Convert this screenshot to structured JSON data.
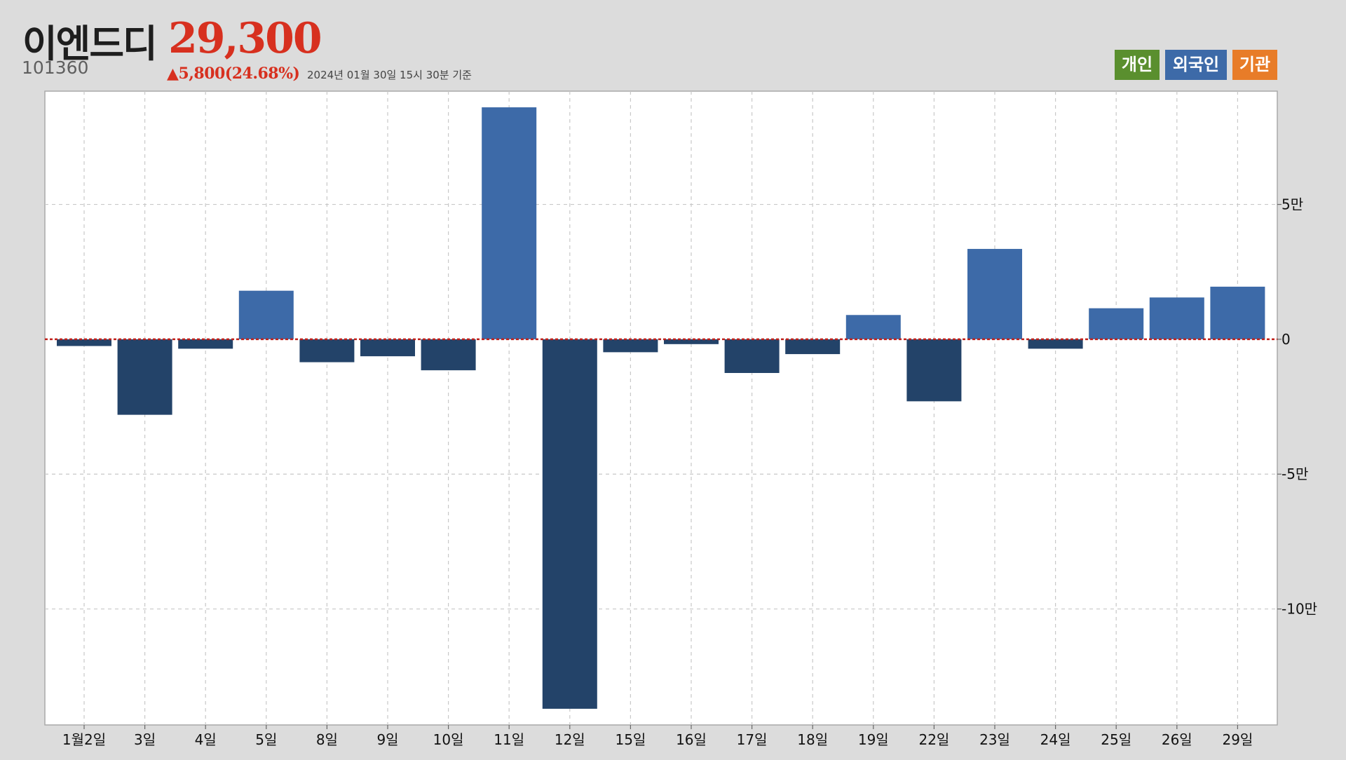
{
  "header": {
    "name": "이엔드디",
    "price": "29,300",
    "code": "101360",
    "change": "▲5,800(24.68%)",
    "asof": "2024년 01월 30일 15시 30분 기준"
  },
  "legend": [
    {
      "label": "개인",
      "color": "#5a8f2e"
    },
    {
      "label": "외국인",
      "color": "#3d6aa8"
    },
    {
      "label": "기관",
      "color": "#e87c28"
    }
  ],
  "colors": {
    "positive_bar": "#3d6aa8",
    "negative_bar": "#234369",
    "zero_line": "#c0201a",
    "grid": "#c8c8c8",
    "plot_background": "#ffffff"
  },
  "chart_data": {
    "type": "bar",
    "series_name": "외국인",
    "categories": [
      "1월2일",
      "3일",
      "4일",
      "5일",
      "8일",
      "9일",
      "10일",
      "11일",
      "12일",
      "15일",
      "16일",
      "17일",
      "18일",
      "19일",
      "22일",
      "23일",
      "24일",
      "25일",
      "26일",
      "29일"
    ],
    "values": [
      -2500,
      -28000,
      -3500,
      18000,
      -8500,
      -6300,
      -11500,
      86000,
      -137000,
      -4800,
      -1800,
      -12500,
      -5500,
      9000,
      -23000,
      33500,
      -3500,
      11500,
      15500,
      19500
    ],
    "ylim": [
      -143000,
      92000
    ],
    "yticks": [
      50000,
      0,
      -50000,
      -100000
    ],
    "ytick_labels": [
      "5만",
      "0",
      "-5만",
      "-10만"
    ],
    "grid": true,
    "legend_position": "top-right"
  }
}
